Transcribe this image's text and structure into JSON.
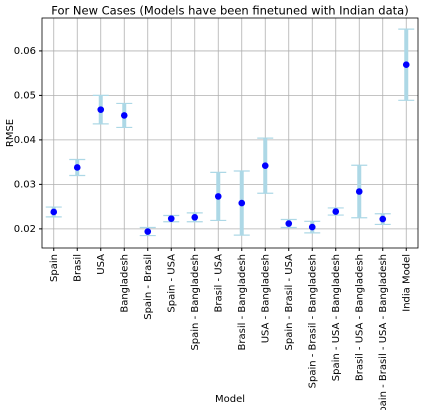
{
  "chart_data": {
    "type": "errorbar",
    "title": "For New Cases (Models have been finetuned with Indian data)",
    "x_label": "Model",
    "y_label": "RMSE",
    "categories": [
      "Spain",
      "Brasil",
      "USA",
      "Bangladesh",
      "Spain - Brasil",
      "Spain - USA",
      "Spain - Bangladesh",
      "Brasil - USA",
      "Brasil - Bangladesh",
      "USA - Bangladesh",
      "Spain - Brasil - USA",
      "Spain - Brasil - Bangladesh",
      "Spain - USA - Bangladesh",
      "Brasil - USA - Bangladesh",
      "Spain - Brasil - USA - Bangladesh",
      "India Model"
    ],
    "values": [
      0.0238,
      0.0338,
      0.0468,
      0.0455,
      0.0194,
      0.0223,
      0.0226,
      0.0273,
      0.0258,
      0.0342,
      0.0212,
      0.0204,
      0.0239,
      0.0284,
      0.0222,
      0.0569
    ],
    "errors": [
      0.0011,
      0.0018,
      0.0032,
      0.0027,
      0.0009,
      0.0007,
      0.001,
      0.0054,
      0.0072,
      0.0062,
      0.0009,
      0.0013,
      0.0008,
      0.0059,
      0.0012,
      0.008
    ],
    "color": "#0000ff",
    "error_color": "#add8e6",
    "ylim": [
      0.0157,
      0.0674
    ],
    "yticks": [
      0.02,
      0.03,
      0.04,
      0.05,
      0.06
    ],
    "grid": true
  }
}
